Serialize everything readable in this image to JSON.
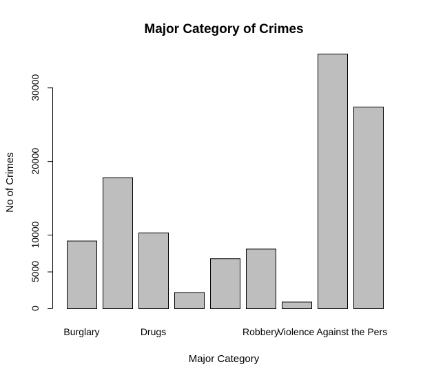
{
  "chart_data": {
    "type": "bar",
    "title": "Major Category of Crimes",
    "xlabel": "Major Category",
    "ylabel": "No of Crimes",
    "category_labels_shown": [
      "Burglary",
      "",
      "Drugs",
      "",
      "",
      "Robbery",
      "",
      "Violence Against the Pers",
      ""
    ],
    "values": [
      9200,
      17800,
      10300,
      2200,
      6800,
      8100,
      900,
      34600,
      27400
    ],
    "ylim": [
      0,
      34600
    ],
    "yticks": [
      0,
      5000,
      10000,
      20000,
      30000
    ],
    "grid": false,
    "legend": "none",
    "bar_color": "#bebebe",
    "border_color": "#000000"
  }
}
